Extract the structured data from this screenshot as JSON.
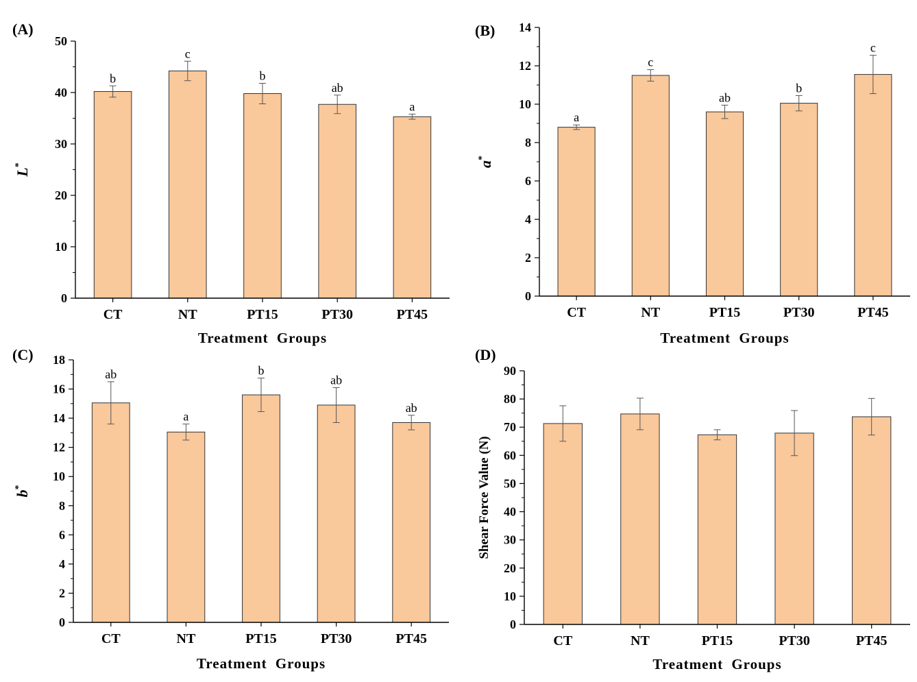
{
  "colors": {
    "bar_fill": "#F9C89B",
    "bar_stroke": "#333333",
    "axis": "#000000",
    "error_bar": "#555555"
  },
  "chart_data": [
    {
      "panel": "(A)",
      "type": "bar",
      "categories": [
        "CT",
        "NT",
        "PT15",
        "PT30",
        "PT45"
      ],
      "values": [
        40.2,
        44.2,
        39.8,
        37.7,
        35.3
      ],
      "errors": [
        1.1,
        1.9,
        2.0,
        1.8,
        0.5
      ],
      "significance": [
        "b",
        "c",
        "b",
        "ab",
        "a"
      ],
      "xlabel": "Treatment  Groups",
      "ylabel": "L",
      "ylabel_sup": "*",
      "ylim": [
        0,
        50
      ],
      "yticks": [
        0,
        10,
        20,
        30,
        40,
        50
      ]
    },
    {
      "panel": "(B)",
      "type": "bar",
      "categories": [
        "CT",
        "NT",
        "PT15",
        "PT30",
        "PT45"
      ],
      "values": [
        8.8,
        11.5,
        9.6,
        10.05,
        11.55
      ],
      "errors": [
        0.12,
        0.3,
        0.35,
        0.4,
        1.0
      ],
      "significance": [
        "a",
        "c",
        "ab",
        "b",
        "c"
      ],
      "xlabel": "Treatment  Groups",
      "ylabel": "a",
      "ylabel_sup": "*",
      "ylim": [
        0,
        14
      ],
      "yticks": [
        0,
        2,
        4,
        6,
        8,
        10,
        12,
        14
      ]
    },
    {
      "panel": "(C)",
      "type": "bar",
      "categories": [
        "CT",
        "NT",
        "PT15",
        "PT30",
        "PT45"
      ],
      "values": [
        15.05,
        13.05,
        15.6,
        14.9,
        13.7
      ],
      "errors": [
        1.45,
        0.55,
        1.15,
        1.2,
        0.5
      ],
      "significance": [
        "ab",
        "a",
        "b",
        "ab",
        "ab"
      ],
      "xlabel": "Treatment  Groups",
      "ylabel": "b",
      "ylabel_sup": "*",
      "ylim": [
        0,
        18
      ],
      "yticks": [
        0,
        2,
        4,
        6,
        8,
        10,
        12,
        14,
        16,
        18
      ]
    },
    {
      "panel": "(D)",
      "type": "bar",
      "categories": [
        "CT",
        "NT",
        "PT15",
        "PT30",
        "PT45"
      ],
      "values": [
        71.3,
        74.7,
        67.3,
        67.9,
        73.7
      ],
      "errors": [
        6.3,
        5.6,
        1.8,
        8.0,
        6.5
      ],
      "significance": [
        "",
        "",
        "",
        "",
        ""
      ],
      "xlabel": "Treatment  Groups",
      "ylabel": "Shear Force Value (N)",
      "ylabel_sup": "",
      "ylim": [
        0,
        90
      ],
      "yticks": [
        0,
        10,
        20,
        30,
        40,
        50,
        60,
        70,
        80,
        90
      ]
    }
  ]
}
